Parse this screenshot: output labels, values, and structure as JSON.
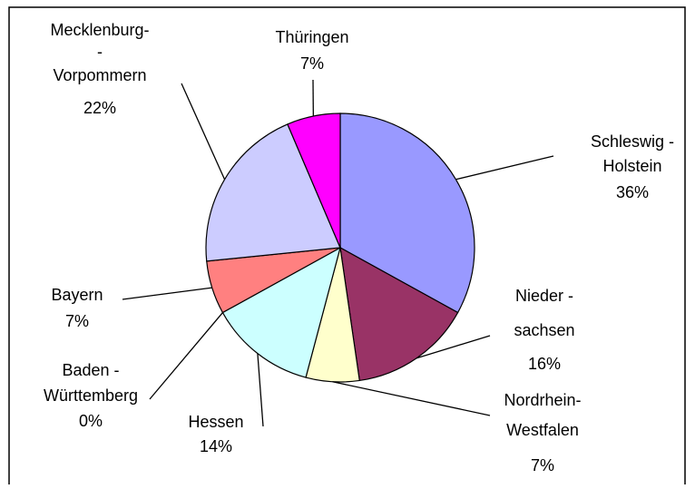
{
  "chart_data": {
    "type": "pie",
    "categories": [
      [
        "Schleswig -",
        "Holstein"
      ],
      [
        "Nieder -",
        "sachsen"
      ],
      [
        "Nordrhein-",
        "Westfalen"
      ],
      [
        "Hessen"
      ],
      [
        "Baden -",
        "Württemberg"
      ],
      [
        "Bayern"
      ],
      [
        "Mecklenburg-",
        "-",
        "Vorpommern"
      ],
      [
        "Thüringen"
      ]
    ],
    "values": [
      36,
      16,
      7,
      14,
      0,
      7,
      22,
      7
    ],
    "value_labels": [
      "36%",
      "16%",
      "7%",
      "14%",
      "0%",
      "7%",
      "22%",
      "7%"
    ],
    "colors": [
      "#9999ff",
      "#993366",
      "#ffffcc",
      "#ccffff",
      "#ffffff",
      "#ff8080",
      "#ccccff",
      "#ff00ff"
    ]
  }
}
